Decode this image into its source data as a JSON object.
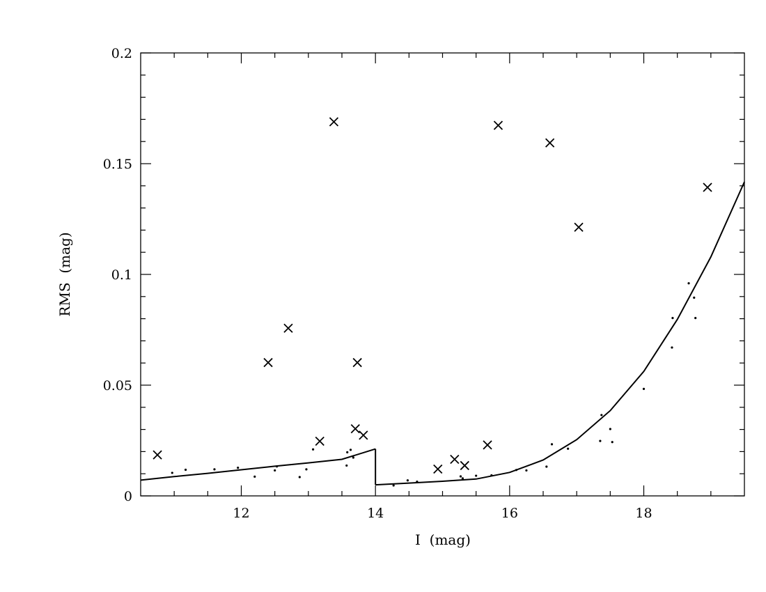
{
  "chart_data": {
    "type": "scatter",
    "title": "",
    "xlabel": "I  (mag)",
    "ylabel": "RMS  (mag)",
    "xlim": [
      10.5,
      19.5
    ],
    "ylim": [
      0,
      0.2
    ],
    "grid": false,
    "x_ticks": [
      12,
      14,
      16,
      18
    ],
    "x_tick_labels": [
      "12",
      "14",
      "16",
      "18"
    ],
    "y_ticks": [
      0,
      0.05,
      0.1,
      0.15,
      0.2
    ],
    "y_tick_labels": [
      "0",
      "0.05",
      "0.1",
      "0.15",
      "0.2"
    ],
    "series": [
      {
        "marker": "cross",
        "points": [
          [
            10.75,
            0.0185
          ],
          [
            12.4,
            0.0602
          ],
          [
            12.7,
            0.0757
          ],
          [
            13.17,
            0.0247
          ],
          [
            13.38,
            0.1689
          ],
          [
            13.7,
            0.0303
          ],
          [
            13.73,
            0.0602
          ],
          [
            13.82,
            0.0274
          ],
          [
            14.93,
            0.0121
          ],
          [
            15.18,
            0.0165
          ],
          [
            15.33,
            0.0137
          ],
          [
            15.67,
            0.023
          ],
          [
            15.83,
            0.1673
          ],
          [
            16.6,
            0.1594
          ],
          [
            17.03,
            0.1213
          ],
          [
            18.95,
            0.1393
          ]
        ]
      },
      {
        "marker": "dot",
        "points": [
          [
            10.97,
            0.0104
          ],
          [
            11.17,
            0.0118
          ],
          [
            11.6,
            0.012
          ],
          [
            11.95,
            0.0127
          ],
          [
            12.2,
            0.0087
          ],
          [
            12.5,
            0.0115
          ],
          [
            12.53,
            0.0133
          ],
          [
            12.87,
            0.0085
          ],
          [
            12.97,
            0.012
          ],
          [
            13.07,
            0.021
          ],
          [
            13.57,
            0.0137
          ],
          [
            13.58,
            0.0197
          ],
          [
            13.63,
            0.0208
          ],
          [
            13.67,
            0.0173
          ],
          [
            14.27,
            0.0047
          ],
          [
            14.48,
            0.007
          ],
          [
            14.62,
            0.0064
          ],
          [
            15.27,
            0.0088
          ],
          [
            15.3,
            0.0079
          ],
          [
            15.5,
            0.0091
          ],
          [
            15.73,
            0.0093
          ],
          [
            16.1,
            0.0117
          ],
          [
            16.25,
            0.0115
          ],
          [
            16.55,
            0.0132
          ],
          [
            16.63,
            0.0233
          ],
          [
            16.87,
            0.0213
          ],
          [
            17.35,
            0.0248
          ],
          [
            17.37,
            0.0365
          ],
          [
            17.5,
            0.0302
          ],
          [
            17.53,
            0.0243
          ],
          [
            18.0,
            0.0483
          ],
          [
            18.42,
            0.067
          ],
          [
            18.43,
            0.0803
          ],
          [
            18.67,
            0.096
          ],
          [
            18.75,
            0.0895
          ],
          [
            18.77,
            0.0803
          ]
        ]
      },
      {
        "marker": "line",
        "points": [
          [
            10.5,
            0.0071
          ],
          [
            11.0,
            0.0087
          ],
          [
            11.5,
            0.0102
          ],
          [
            12.0,
            0.0118
          ],
          [
            12.5,
            0.0134
          ],
          [
            13.0,
            0.0149
          ],
          [
            13.5,
            0.0165
          ],
          [
            14.0,
            0.0212
          ],
          [
            14.0,
            0.005
          ],
          [
            14.5,
            0.0058
          ],
          [
            15.0,
            0.0066
          ],
          [
            15.5,
            0.0076
          ],
          [
            16.0,
            0.0106
          ],
          [
            16.5,
            0.0162
          ],
          [
            17.0,
            0.0254
          ],
          [
            17.5,
            0.0385
          ],
          [
            18.0,
            0.0562
          ],
          [
            18.5,
            0.0797
          ],
          [
            19.0,
            0.1079
          ],
          [
            19.5,
            0.1418
          ]
        ]
      }
    ]
  }
}
